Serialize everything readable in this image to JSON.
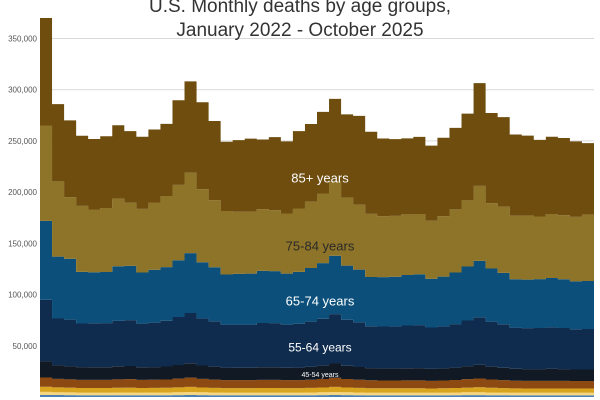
{
  "chart_data": {
    "type": "area",
    "title_line1": "U.S. Monthly deaths by age groups,",
    "title_line2": "January 2022 - October 2025",
    "xlabel": "",
    "ylabel": "",
    "ylim": [
      0,
      370000
    ],
    "yticks": [
      {
        "value": 50000,
        "label": "50,000"
      },
      {
        "value": 100000,
        "label": "100,000"
      },
      {
        "value": 150000,
        "label": "150,000"
      },
      {
        "value": 200000,
        "label": "200,000"
      },
      {
        "value": 250000,
        "label": "250,000"
      },
      {
        "value": 300000,
        "label": "300,000"
      },
      {
        "value": 350000,
        "label": "350,000"
      }
    ],
    "grid": true,
    "legend": "none",
    "stacked": true,
    "step": true,
    "x_start": "2022-01",
    "x_end": "2025-10",
    "series": [
      {
        "label": "",
        "color": "#4a7fb5",
        "values": [
          2000,
          1900,
          1800,
          1700,
          1700,
          1700,
          1700,
          1700,
          1700,
          1700,
          1700,
          1800,
          1900,
          1800,
          1700,
          1700,
          1700,
          1700,
          1700,
          1700,
          1700,
          1700,
          1700,
          1800,
          1900,
          1800,
          1700,
          1600,
          1600,
          1600,
          1600,
          1600,
          1600,
          1600,
          1700,
          1800,
          1800,
          1700,
          1700,
          1600,
          1600,
          1600,
          1600,
          1600,
          1600,
          1600
        ]
      },
      {
        "label": "",
        "color": "#f5d580",
        "values": [
          3000,
          2800,
          2700,
          2600,
          2600,
          2600,
          2700,
          2700,
          2600,
          2700,
          2700,
          2800,
          3000,
          2800,
          2700,
          2600,
          2600,
          2600,
          2600,
          2600,
          2600,
          2600,
          2700,
          2800,
          3000,
          2800,
          2700,
          2600,
          2600,
          2600,
          2600,
          2600,
          2500,
          2600,
          2700,
          2800,
          2900,
          2700,
          2600,
          2500,
          2500,
          2500,
          2500,
          2500,
          2500,
          2500
        ]
      },
      {
        "label": "",
        "color": "#d9a520",
        "values": [
          5000,
          4700,
          4600,
          4500,
          4500,
          4500,
          4600,
          4700,
          4500,
          4500,
          4600,
          4800,
          5000,
          4700,
          4500,
          4400,
          4400,
          4400,
          4500,
          4500,
          4400,
          4400,
          4500,
          4700,
          5000,
          4700,
          4500,
          4400,
          4300,
          4300,
          4300,
          4300,
          4200,
          4300,
          4400,
          4600,
          4800,
          4600,
          4400,
          4300,
          4200,
          4200,
          4200,
          4200,
          4200,
          4200
        ]
      },
      {
        "label": "",
        "color": "#8c4a12",
        "values": [
          9000,
          8300,
          8100,
          7900,
          7900,
          7900,
          8200,
          8300,
          7900,
          7900,
          8100,
          8500,
          9000,
          8400,
          8100,
          7800,
          7800,
          7800,
          7900,
          7900,
          7800,
          7800,
          8000,
          8300,
          8900,
          8300,
          8000,
          7700,
          7600,
          7600,
          7700,
          7700,
          7500,
          7600,
          7800,
          8200,
          8600,
          8100,
          7800,
          7500,
          7400,
          7400,
          7500,
          7400,
          7300,
          7300
        ]
      },
      {
        "label": "45-54 years",
        "color": "#111a24",
        "values": [
          16000,
          13400,
          12900,
          12500,
          12400,
          12400,
          12800,
          12900,
          12300,
          12400,
          12700,
          13300,
          14000,
          13100,
          12600,
          12200,
          12100,
          12100,
          12400,
          12400,
          12100,
          12200,
          12500,
          13000,
          13900,
          12900,
          12400,
          11900,
          11800,
          11800,
          11900,
          12000,
          11600,
          11800,
          12100,
          12700,
          13300,
          12600,
          12100,
          11700,
          11500,
          11500,
          11600,
          11500,
          11300,
          11300
        ]
      },
      {
        "label": "55-64 years",
        "color": "#0f2b4d",
        "values": [
          60000,
          45500,
          45400,
          42600,
          42900,
          43000,
          44300,
          44700,
          42600,
          43400,
          44600,
          46900,
          49100,
          45900,
          44300,
          41900,
          42000,
          42100,
          43200,
          43000,
          42100,
          42700,
          44200,
          45800,
          48200,
          44900,
          43600,
          40900,
          40900,
          41000,
          41700,
          42000,
          40400,
          41000,
          42500,
          44600,
          46500,
          43900,
          42400,
          40100,
          40000,
          40200,
          40600,
          40100,
          39300,
          39500
        ]
      },
      {
        "label": "65-74 years",
        "color": "#0b4f7a",
        "values": [
          77000,
          60400,
          59500,
          50300,
          49800,
          49900,
          53400,
          53000,
          50000,
          51600,
          52400,
          55400,
          58500,
          54800,
          52800,
          49000,
          49600,
          49800,
          50800,
          50800,
          49700,
          50800,
          52300,
          54300,
          57000,
          52900,
          51500,
          48100,
          48200,
          48500,
          49300,
          49600,
          47700,
          48600,
          50300,
          52700,
          55000,
          51900,
          50200,
          47300,
          47400,
          47700,
          48200,
          47600,
          46700,
          46900
        ]
      },
      {
        "label": "75-84 years",
        "color": "#8e7428",
        "values": [
          93000,
          73500,
          60000,
          64500,
          61200,
          62500,
          66000,
          61700,
          62000,
          65700,
          69400,
          73600,
          78500,
          71400,
          65500,
          62000,
          60600,
          60500,
          60300,
          59400,
          58700,
          61800,
          64700,
          68000,
          72600,
          66300,
          63300,
          61600,
          59500,
          59400,
          59200,
          58900,
          56700,
          59000,
          61700,
          64500,
          73200,
          63800,
          64500,
          62000,
          62500,
          61100,
          62400,
          62500,
          62900,
          64700
        ]
      },
      {
        "label": "85+ years",
        "color": "#6e4d0f",
        "values": [
          105000,
          75400,
          75000,
          68400,
          68900,
          70000,
          71600,
          69900,
          70500,
          71200,
          70400,
          82600,
          89100,
          84800,
          77300,
          67600,
          70000,
          71200,
          68000,
          71400,
          70400,
          75600,
          75900,
          79600,
          80600,
          81300,
          86700,
          80200,
          75800,
          75000,
          74200,
          75300,
          73200,
          76600,
          79500,
          84800,
          100300,
          87900,
          87500,
          79300,
          78100,
          74800,
          75500,
          75400,
          73800,
          69900
        ]
      }
    ]
  }
}
